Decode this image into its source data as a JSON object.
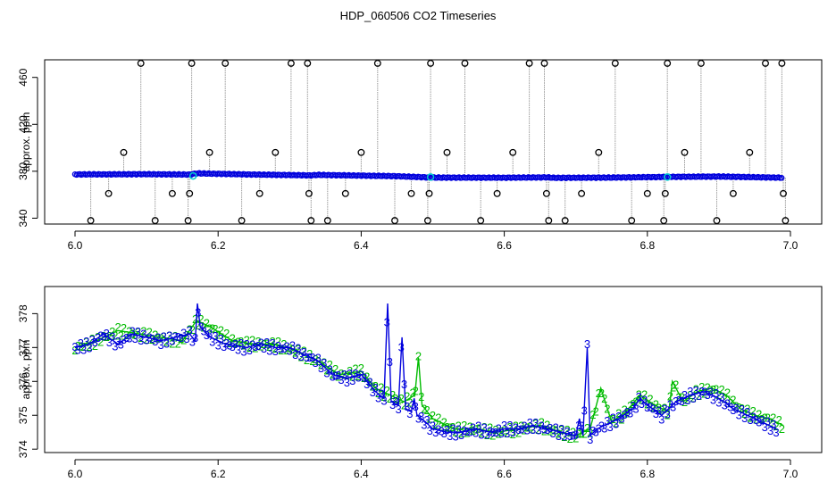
{
  "figure": {
    "title": "HDP_060506  CO2 Timeseries"
  },
  "colors": {
    "raw_points": "#000000",
    "raw_lines": "#9a9a9a",
    "series_3": "#0000dd",
    "series_2": "#00bb00",
    "highlight": "#00cccc",
    "frame": "#000000"
  },
  "chart_data": [
    {
      "type": "scatter",
      "ylabel": "approx. ppm",
      "xlabel": "",
      "xlim": [
        6.0,
        7.0
      ],
      "ylim": [
        335,
        475
      ],
      "x_ticks": [
        "6.0",
        "6.2",
        "6.4",
        "6.6",
        "6.8",
        "7.0"
      ],
      "y_ticks": [
        "340",
        "380",
        "420",
        "460"
      ],
      "baseline": {
        "x": [
          6.0,
          6.1,
          6.16,
          6.17,
          6.25,
          6.33,
          6.34,
          6.45,
          6.5,
          6.6,
          6.66,
          6.67,
          6.75,
          6.83,
          6.9,
          6.99
        ],
        "y": [
          377.3,
          377.5,
          377.2,
          378.2,
          377.2,
          376.5,
          376.9,
          375.8,
          374.6,
          374.5,
          374.8,
          374.4,
          374.6,
          375.2,
          375.5,
          374.5
        ]
      },
      "outliers": [
        {
          "x": 6.022,
          "y": 338
        },
        {
          "x": 6.047,
          "y": 361
        },
        {
          "x": 6.068,
          "y": 396
        },
        {
          "x": 6.092,
          "y": 472
        },
        {
          "x": 6.112,
          "y": 338
        },
        {
          "x": 6.136,
          "y": 361
        },
        {
          "x": 6.158,
          "y": 338
        },
        {
          "x": 6.16,
          "y": 361
        },
        {
          "x": 6.163,
          "y": 472
        },
        {
          "x": 6.188,
          "y": 396
        },
        {
          "x": 6.21,
          "y": 472
        },
        {
          "x": 6.233,
          "y": 338
        },
        {
          "x": 6.258,
          "y": 361
        },
        {
          "x": 6.28,
          "y": 396
        },
        {
          "x": 6.302,
          "y": 472
        },
        {
          "x": 6.325,
          "y": 472
        },
        {
          "x": 6.327,
          "y": 361
        },
        {
          "x": 6.33,
          "y": 338
        },
        {
          "x": 6.353,
          "y": 338
        },
        {
          "x": 6.378,
          "y": 361
        },
        {
          "x": 6.4,
          "y": 396
        },
        {
          "x": 6.423,
          "y": 472
        },
        {
          "x": 6.447,
          "y": 338
        },
        {
          "x": 6.47,
          "y": 361
        },
        {
          "x": 6.493,
          "y": 338
        },
        {
          "x": 6.495,
          "y": 361
        },
        {
          "x": 6.497,
          "y": 472
        },
        {
          "x": 6.52,
          "y": 396
        },
        {
          "x": 6.545,
          "y": 472
        },
        {
          "x": 6.567,
          "y": 338
        },
        {
          "x": 6.59,
          "y": 361
        },
        {
          "x": 6.612,
          "y": 396
        },
        {
          "x": 6.635,
          "y": 472
        },
        {
          "x": 6.656,
          "y": 472
        },
        {
          "x": 6.659,
          "y": 361
        },
        {
          "x": 6.662,
          "y": 338
        },
        {
          "x": 6.685,
          "y": 338
        },
        {
          "x": 6.708,
          "y": 361
        },
        {
          "x": 6.732,
          "y": 396
        },
        {
          "x": 6.755,
          "y": 472
        },
        {
          "x": 6.778,
          "y": 338
        },
        {
          "x": 6.8,
          "y": 361
        },
        {
          "x": 6.823,
          "y": 338
        },
        {
          "x": 6.825,
          "y": 361
        },
        {
          "x": 6.828,
          "y": 472
        },
        {
          "x": 6.852,
          "y": 396
        },
        {
          "x": 6.875,
          "y": 472
        },
        {
          "x": 6.897,
          "y": 338
        },
        {
          "x": 6.92,
          "y": 361
        },
        {
          "x": 6.943,
          "y": 396
        },
        {
          "x": 6.965,
          "y": 472
        },
        {
          "x": 6.988,
          "y": 472
        },
        {
          "x": 6.99,
          "y": 361
        },
        {
          "x": 6.993,
          "y": 338
        }
      ],
      "highlights": [
        {
          "x": 6.165,
          "y": 376
        },
        {
          "x": 6.497,
          "y": 375
        },
        {
          "x": 6.828,
          "y": 375
        }
      ]
    },
    {
      "type": "line",
      "ylabel": "approx. ppm",
      "xlabel": "",
      "xlim": [
        6.0,
        7.0
      ],
      "ylim": [
        373.9,
        378.8
      ],
      "x_ticks": [
        "6.0",
        "6.2",
        "6.4",
        "6.6",
        "6.8",
        "7.0"
      ],
      "y_ticks": [
        "374",
        "375",
        "376",
        "377",
        "378"
      ],
      "series": [
        {
          "symbol": "3",
          "x": [
            6.0,
            6.02,
            6.04,
            6.06,
            6.08,
            6.1,
            6.12,
            6.14,
            6.16,
            6.168,
            6.171,
            6.175,
            6.19,
            6.21,
            6.24,
            6.26,
            6.28,
            6.3,
            6.32,
            6.34,
            6.36,
            6.38,
            6.4,
            6.42,
            6.432,
            6.437,
            6.442,
            6.452,
            6.457,
            6.462,
            6.47,
            6.474,
            6.478,
            6.49,
            6.5,
            6.52,
            6.54,
            6.56,
            6.58,
            6.6,
            6.62,
            6.64,
            6.66,
            6.68,
            6.7,
            6.705,
            6.71,
            6.716,
            6.72,
            6.73,
            6.74,
            6.76,
            6.78,
            6.79,
            6.8,
            6.82,
            6.84,
            6.86,
            6.88,
            6.9,
            6.92,
            6.94,
            6.96,
            6.98
          ],
          "y": [
            377.0,
            377.1,
            377.4,
            377.1,
            377.4,
            377.3,
            377.2,
            377.3,
            377.4,
            377.2,
            378.3,
            377.6,
            377.3,
            377.1,
            377.0,
            377.1,
            377.0,
            377.0,
            376.8,
            376.6,
            376.2,
            376.1,
            376.2,
            375.7,
            375.5,
            378.3,
            375.4,
            375.3,
            377.3,
            375.2,
            375.1,
            375.5,
            375.0,
            374.8,
            374.6,
            374.5,
            374.5,
            374.6,
            374.5,
            374.6,
            374.6,
            374.7,
            374.6,
            374.5,
            374.4,
            374.9,
            374.4,
            377.0,
            374.4,
            374.6,
            374.7,
            374.9,
            375.2,
            375.5,
            375.3,
            375.0,
            375.4,
            375.6,
            375.7,
            375.5,
            375.2,
            375.0,
            374.8,
            374.6
          ]
        },
        {
          "symbol": "2",
          "x": [
            6.0,
            6.03,
            6.06,
            6.09,
            6.12,
            6.15,
            6.17,
            6.19,
            6.22,
            6.25,
            6.28,
            6.31,
            6.34,
            6.37,
            6.4,
            6.42,
            6.44,
            6.46,
            6.475,
            6.48,
            6.485,
            6.5,
            6.53,
            6.56,
            6.59,
            6.62,
            6.65,
            6.68,
            6.7,
            6.72,
            6.735,
            6.75,
            6.77,
            6.79,
            6.81,
            6.83,
            6.835,
            6.85,
            6.87,
            6.89,
            6.91,
            6.93,
            6.95,
            6.97,
            6.99
          ],
          "y": [
            377.0,
            377.2,
            377.5,
            377.4,
            377.3,
            377.2,
            377.8,
            377.6,
            377.2,
            377.1,
            377.1,
            376.9,
            376.6,
            376.2,
            376.3,
            375.8,
            375.6,
            375.4,
            375.6,
            376.7,
            375.3,
            374.9,
            374.6,
            374.6,
            374.5,
            374.6,
            374.7,
            374.5,
            374.4,
            374.6,
            375.8,
            374.8,
            375.1,
            375.6,
            375.3,
            375.1,
            376.0,
            375.4,
            375.7,
            375.8,
            375.6,
            375.2,
            375.0,
            374.9,
            374.7
          ]
        }
      ]
    }
  ]
}
